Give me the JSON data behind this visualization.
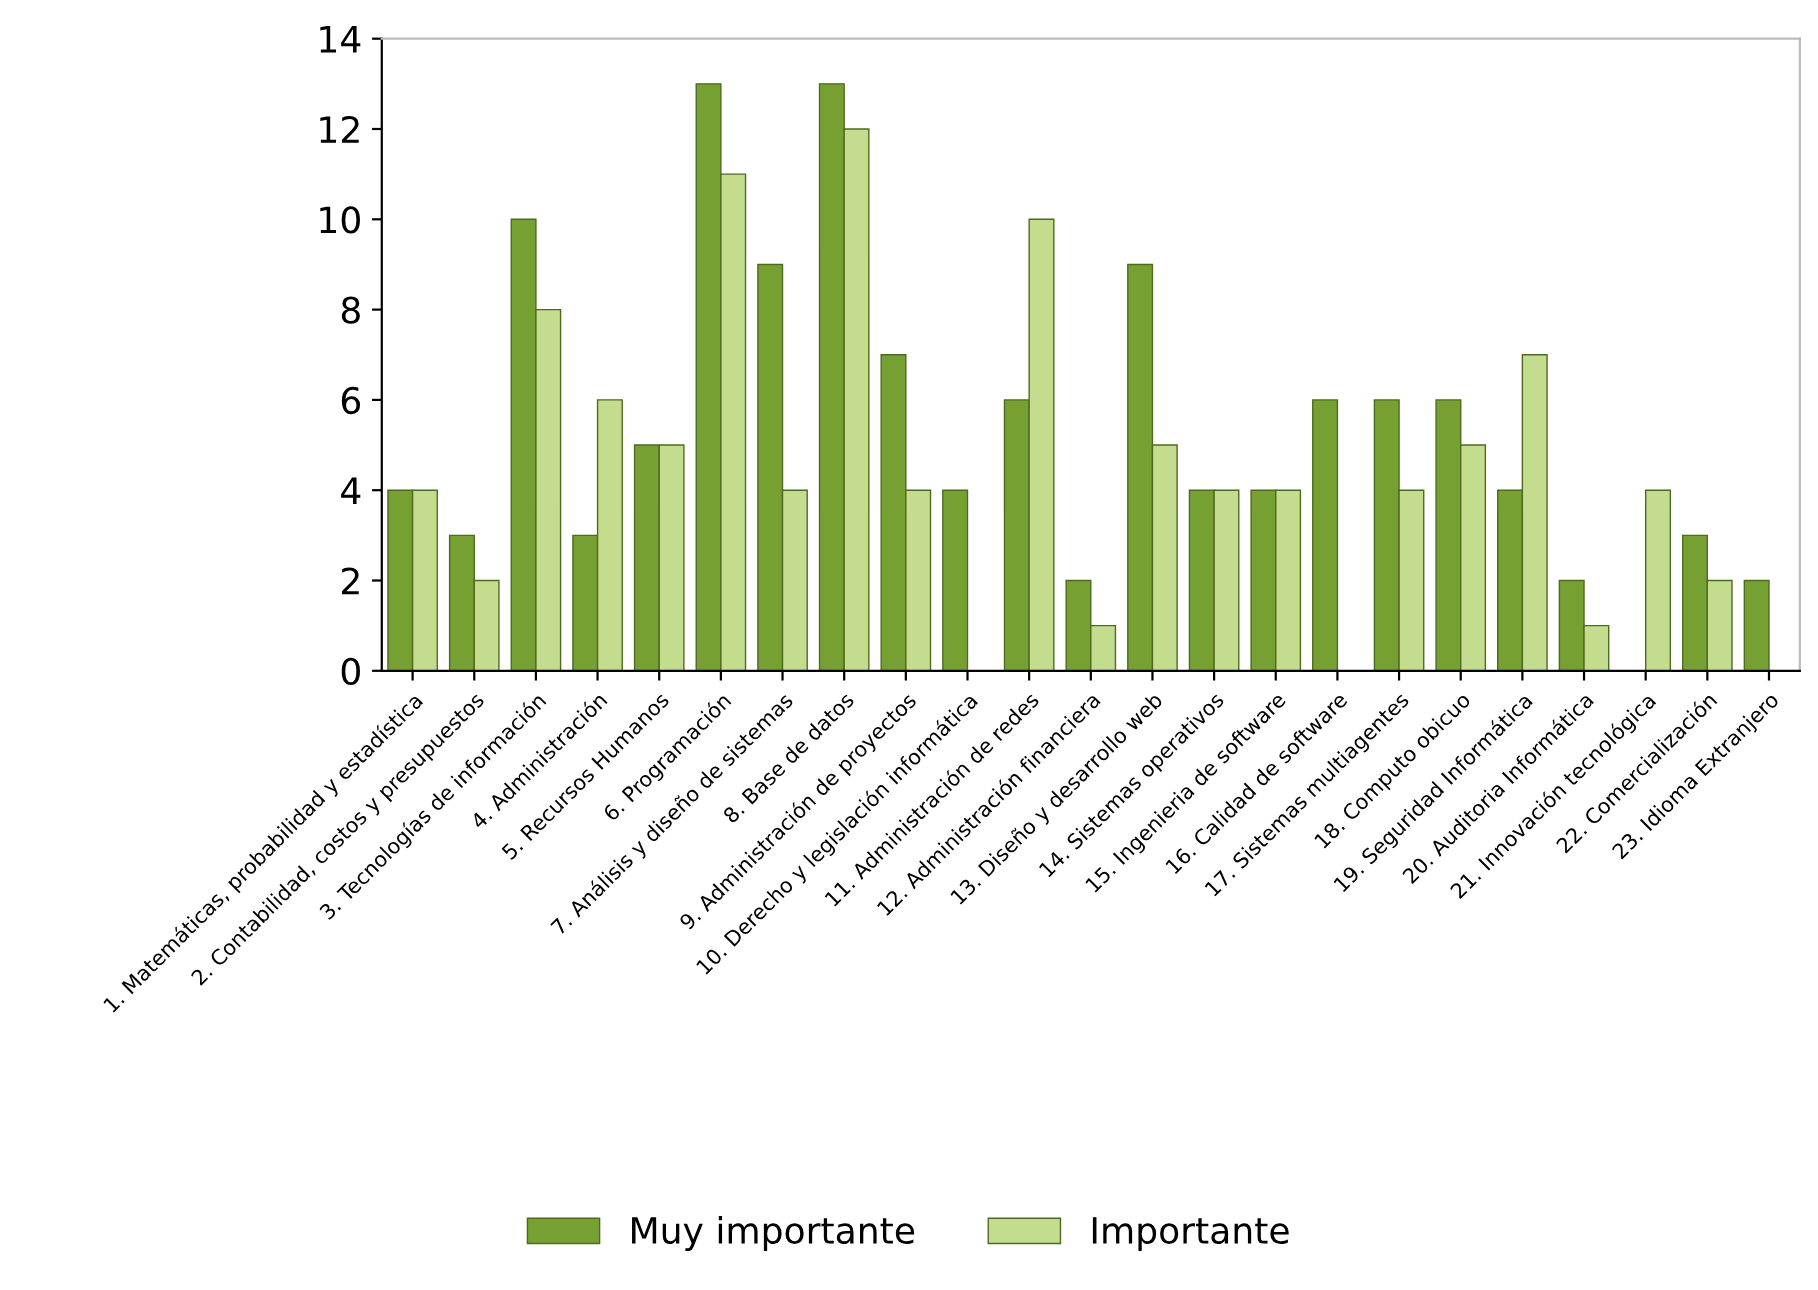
{
  "chart_data": {
    "type": "bar",
    "categories": [
      "1. Matemáticas, probabilidad y estadística",
      "2. Contabilidad, costos y presupuestos",
      "3. Tecnologías de información",
      "4. Administración",
      "5. Recursos Humanos",
      "6. Programación",
      "7. Análisis y diseño de sistemas",
      "8. Base de datos",
      "9. Administración de proyectos",
      "10. Derecho y legislación informática",
      "11. Administración de redes",
      "12. Administración financiera",
      "13. Diseño y desarrollo web",
      "14. Sistemas operativos",
      "15. Ingenieria de software",
      "16. Calidad de software",
      "17. Sistemas multiagentes",
      "18. Computo obicuo",
      "19. Seguridad Informática",
      "20. Auditoria Informática",
      "21. Innovación tecnológica",
      "22. Comercialización",
      "23. Idioma Extranjero"
    ],
    "series": [
      {
        "name": "Muy importante",
        "color": "#77a033",
        "values": [
          4,
          3,
          10,
          3,
          5,
          13,
          9,
          13,
          7,
          4,
          6,
          2,
          9,
          4,
          4,
          6,
          6,
          6,
          4,
          2,
          0,
          3,
          2
        ]
      },
      {
        "name": "Importante",
        "color": "#c3dc8e",
        "values": [
          4,
          2,
          8,
          6,
          5,
          11,
          4,
          12,
          4,
          0,
          10,
          1,
          5,
          4,
          4,
          0,
          4,
          5,
          7,
          1,
          4,
          2,
          0
        ]
      }
    ],
    "ylim": [
      0,
      14
    ],
    "yticks": [
      0,
      2,
      4,
      6,
      8,
      10,
      12,
      14
    ],
    "grid": false,
    "legend": "bottom"
  }
}
